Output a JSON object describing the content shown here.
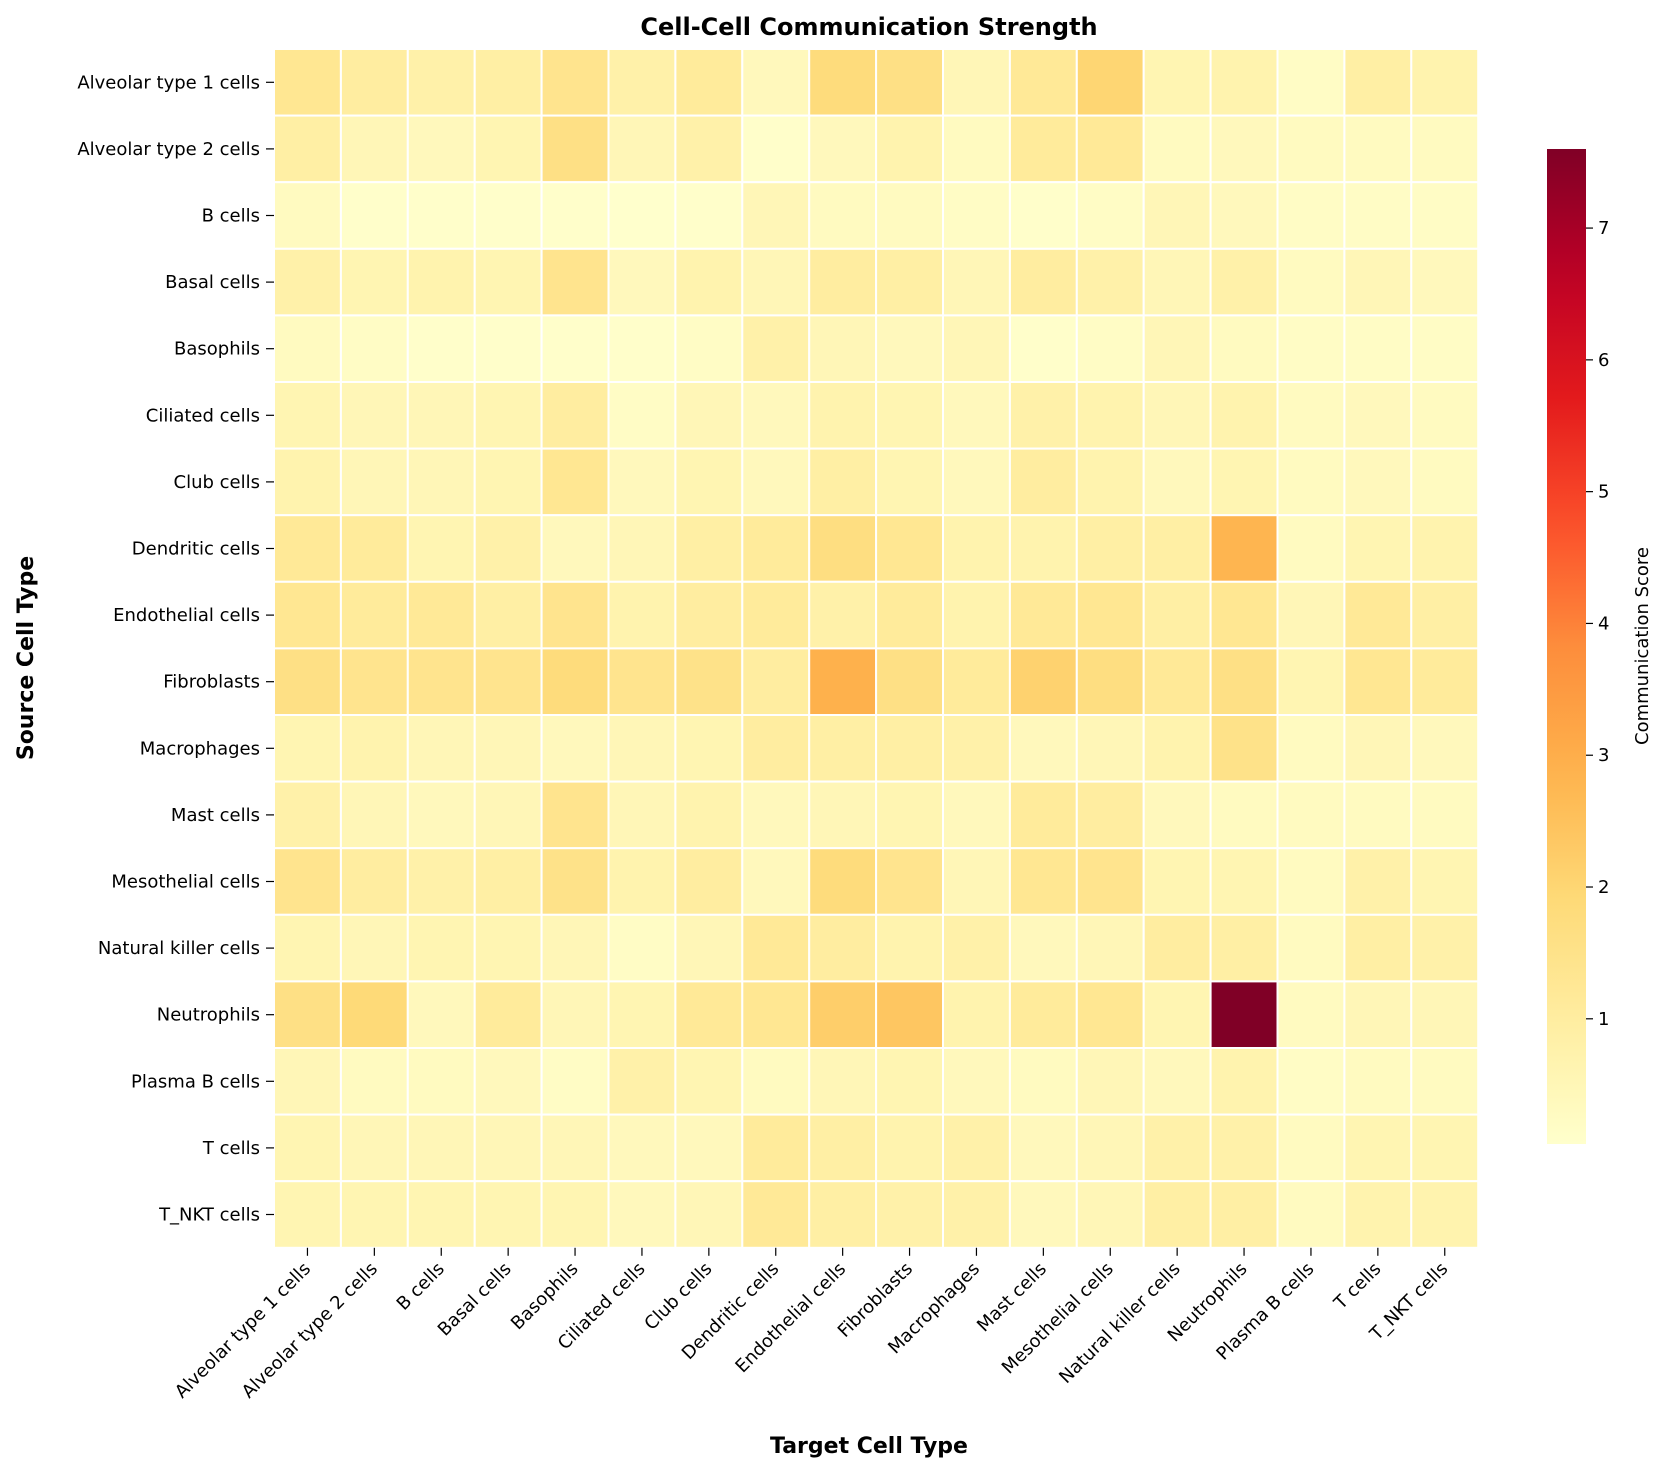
{
  "chart_data": {
    "type": "heatmap",
    "title": "Cell-Cell Communication Strength",
    "xlabel": "Target Cell Type",
    "ylabel": "Source Cell Type",
    "colorbar": {
      "label": "Communication Score",
      "range": [
        0.05,
        7.6
      ],
      "ticks": [
        1,
        2,
        3,
        4,
        5,
        6,
        7
      ],
      "colormap": "YlOrRd"
    },
    "x_categories": [
      "Alveolar type 1 cells",
      "Alveolar type 2 cells",
      "B cells",
      "Basal cells",
      "Basophils",
      "Ciliated cells",
      "Club cells",
      "Dendritic cells",
      "Endothelial cells",
      "Fibroblasts",
      "Macrophages",
      "Mast cells",
      "Mesothelial cells",
      "Natural killer cells",
      "Neutrophils",
      "Plasma B cells",
      "T cells",
      "T_NKT cells"
    ],
    "y_categories": [
      "Alveolar type 1 cells",
      "Alveolar type 2 cells",
      "B cells",
      "Basal cells",
      "Basophils",
      "Ciliated cells",
      "Club cells",
      "Dendritic cells",
      "Endothelial cells",
      "Fibroblasts",
      "Macrophages",
      "Mast cells",
      "Mesothelial cells",
      "Natural killer cells",
      "Neutrophils",
      "Plasma B cells",
      "T cells",
      "T_NKT cells"
    ],
    "values": [
      [
        1.3,
        1.0,
        0.8,
        0.9,
        1.4,
        0.8,
        1.1,
        0.4,
        1.8,
        1.6,
        0.5,
        1.2,
        2.0,
        0.6,
        0.7,
        0.2,
        0.9,
        0.7
      ],
      [
        0.9,
        0.5,
        0.4,
        0.6,
        1.6,
        0.5,
        0.8,
        0.1,
        0.4,
        0.7,
        0.3,
        1.1,
        1.2,
        0.3,
        0.4,
        0.3,
        0.3,
        0.3
      ],
      [
        0.3,
        0.1,
        0.1,
        0.1,
        0.1,
        0.05,
        0.1,
        0.5,
        0.3,
        0.3,
        0.2,
        0.1,
        0.2,
        0.5,
        0.4,
        0.2,
        0.2,
        0.2
      ],
      [
        0.8,
        0.6,
        0.7,
        0.6,
        1.4,
        0.4,
        0.7,
        0.5,
        1.0,
        0.9,
        0.5,
        1.0,
        0.8,
        0.5,
        0.8,
        0.3,
        0.5,
        0.4
      ],
      [
        0.3,
        0.2,
        0.1,
        0.1,
        0.1,
        0.1,
        0.2,
        0.8,
        0.5,
        0.4,
        0.5,
        0.1,
        0.2,
        0.5,
        0.3,
        0.2,
        0.2,
        0.2
      ],
      [
        0.6,
        0.5,
        0.5,
        0.6,
        1.0,
        0.2,
        0.5,
        0.4,
        0.7,
        0.6,
        0.4,
        0.8,
        0.7,
        0.5,
        0.7,
        0.3,
        0.4,
        0.3
      ],
      [
        0.7,
        0.5,
        0.5,
        0.6,
        1.3,
        0.4,
        0.6,
        0.4,
        0.9,
        0.6,
        0.4,
        1.0,
        0.7,
        0.4,
        0.6,
        0.3,
        0.4,
        0.3
      ],
      [
        1.2,
        1.1,
        0.6,
        0.8,
        0.4,
        0.5,
        0.9,
        1.1,
        1.7,
        1.3,
        0.7,
        0.7,
        0.9,
        0.9,
        2.8,
        0.3,
        0.6,
        0.7
      ],
      [
        1.3,
        1.1,
        1.2,
        0.9,
        1.4,
        0.7,
        1.0,
        1.1,
        0.8,
        1.1,
        0.7,
        1.2,
        1.3,
        0.9,
        1.3,
        0.5,
        1.2,
        0.9
      ],
      [
        1.6,
        1.4,
        1.4,
        1.4,
        1.8,
        1.4,
        1.5,
        1.0,
        2.9,
        1.6,
        1.1,
        2.1,
        1.7,
        1.2,
        1.6,
        0.6,
        1.3,
        1.1
      ],
      [
        0.6,
        0.7,
        0.5,
        0.5,
        0.4,
        0.5,
        0.6,
        1.0,
        0.9,
        0.9,
        0.8,
        0.4,
        0.5,
        0.7,
        1.5,
        0.3,
        0.5,
        0.4
      ],
      [
        0.8,
        0.5,
        0.4,
        0.5,
        1.4,
        0.5,
        0.7,
        0.4,
        0.5,
        0.6,
        0.4,
        1.1,
        1.0,
        0.4,
        0.3,
        0.3,
        0.3,
        0.3
      ],
      [
        1.4,
        1.0,
        0.8,
        0.9,
        1.5,
        0.7,
        1.0,
        0.4,
        1.8,
        1.4,
        0.5,
        1.3,
        1.4,
        0.6,
        0.6,
        0.3,
        0.8,
        0.6
      ],
      [
        0.6,
        0.5,
        0.6,
        0.6,
        0.5,
        0.2,
        0.5,
        1.2,
        1.0,
        0.7,
        0.8,
        0.4,
        0.5,
        1.0,
        0.9,
        0.3,
        0.9,
        0.8
      ],
      [
        1.6,
        1.9,
        0.4,
        1.1,
        0.5,
        0.6,
        1.2,
        1.3,
        2.2,
        2.4,
        0.7,
        1.1,
        1.3,
        0.6,
        7.6,
        0.3,
        0.5,
        0.5
      ],
      [
        0.5,
        0.3,
        0.3,
        0.4,
        0.2,
        0.8,
        0.6,
        0.3,
        0.5,
        0.6,
        0.4,
        0.3,
        0.5,
        0.4,
        0.7,
        0.2,
        0.3,
        0.3
      ],
      [
        0.6,
        0.5,
        0.5,
        0.5,
        0.5,
        0.4,
        0.4,
        1.1,
        0.9,
        0.7,
        0.8,
        0.4,
        0.5,
        0.8,
        0.8,
        0.3,
        0.6,
        0.6
      ],
      [
        0.6,
        0.6,
        0.6,
        0.6,
        0.6,
        0.4,
        0.5,
        1.2,
        0.9,
        0.8,
        0.8,
        0.4,
        0.5,
        0.9,
        0.9,
        0.3,
        0.7,
        0.7
      ]
    ]
  }
}
